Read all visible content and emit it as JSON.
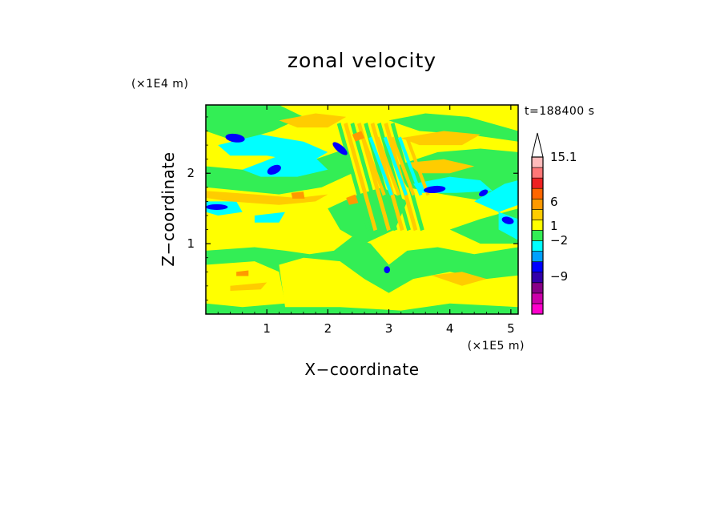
{
  "chart_data": {
    "type": "heatmap",
    "title": "zonal velocity",
    "xlabel": "X−coordinate",
    "ylabel": "Z−coordinate",
    "x_unit_label": "(×1E5 m)",
    "y_unit_label": "(×1E4 m)",
    "time_label": "t=188400 s",
    "xlim": [
      0,
      5.12
    ],
    "ylim": [
      0,
      2.97
    ],
    "x_ticks": [
      1,
      2,
      3,
      4,
      5
    ],
    "y_ticks": [
      1,
      2
    ],
    "colorbar": {
      "ticks": [
        {
          "value": 15.1,
          "label": "15.1"
        },
        {
          "value": 6,
          "label": "6"
        },
        {
          "value": 1,
          "label": "1"
        },
        {
          "value": -2,
          "label": "−2"
        },
        {
          "value": -9,
          "label": "−9"
        }
      ],
      "bins": [
        {
          "color": "#ff00cc"
        },
        {
          "color": "#cc00aa"
        },
        {
          "color": "#880088"
        },
        {
          "color": "#3300aa"
        },
        {
          "color": "#0000ff"
        },
        {
          "color": "#00a0ff"
        },
        {
          "color": "#00ffff"
        },
        {
          "color": "#33ee55"
        },
        {
          "color": "#ffff00"
        },
        {
          "color": "#ffcc00"
        },
        {
          "color": "#ff9900"
        },
        {
          "color": "#ff6600"
        },
        {
          "color": "#ee2222"
        },
        {
          "color": "#ff7777"
        },
        {
          "color": "#ffbbbb"
        }
      ],
      "extend_max": true
    },
    "field_colors": {
      "background": "#ffff00",
      "green": "#33ee55",
      "cyan": "#00ffff",
      "blue": "#0000ff",
      "orange": "#ffcc00",
      "dark_orange": "#ff9900"
    }
  }
}
